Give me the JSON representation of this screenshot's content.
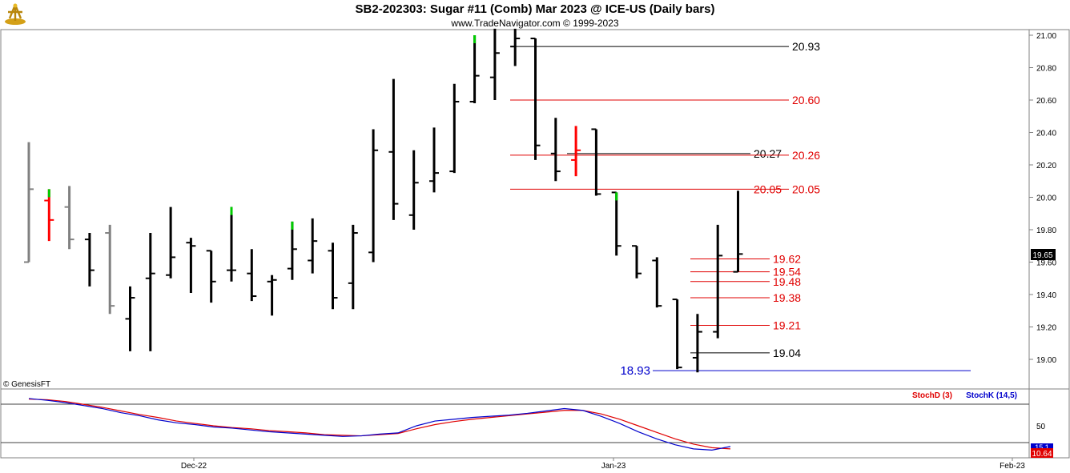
{
  "title": "SB2-202303:  Sugar #11 (Comb) Mar 2023 @ ICE-US  (Daily bars)",
  "subtitle": "www.TradeNavigator.com © 1999-2023",
  "copyright": "© GenesisFT",
  "colors": {
    "up": "#00cc00",
    "down": "#ff0000",
    "bar": "#000000",
    "gray": "#808080",
    "level_red": "#e00000",
    "level_blue": "#0000cc",
    "stoch_d": "#e00000",
    "stoch_k": "#0000cc"
  },
  "chart_data": {
    "type": "ohlc",
    "price_axis": {
      "ticks": [
        "21.00",
        "20.80",
        "20.60",
        "20.40",
        "20.20",
        "20.00",
        "19.80",
        "19.60",
        "19.40",
        "19.20",
        "19.00"
      ],
      "ylim": [
        18.88,
        21.03
      ]
    },
    "last_price": "19.65",
    "x_labels": [
      "Dec-22",
      "Jan-23",
      "Feb-23"
    ],
    "bars": [
      {
        "o": 19.6,
        "h": 20.34,
        "l": 19.6,
        "c": 20.05,
        "style": "gray"
      },
      {
        "o": 19.98,
        "h": 20.05,
        "l": 19.73,
        "c": 19.86,
        "style": "red"
      },
      {
        "o": 19.94,
        "h": 20.07,
        "l": 19.68,
        "c": 19.74,
        "style": "gray"
      },
      {
        "o": 19.74,
        "h": 19.78,
        "l": 19.45,
        "c": 19.55,
        "style": "black"
      },
      {
        "o": 19.78,
        "h": 19.83,
        "l": 19.28,
        "c": 19.33,
        "style": "gray"
      },
      {
        "o": 19.25,
        "h": 19.45,
        "l": 19.05,
        "c": 19.38,
        "style": "black"
      },
      {
        "o": 19.5,
        "h": 19.78,
        "l": 19.05,
        "c": 19.53,
        "style": "black"
      },
      {
        "o": 19.52,
        "h": 19.94,
        "l": 19.5,
        "c": 19.63,
        "style": "black"
      },
      {
        "o": 19.72,
        "h": 19.75,
        "l": 19.41,
        "c": 19.7,
        "style": "black"
      },
      {
        "o": 19.67,
        "h": 19.67,
        "l": 19.35,
        "c": 19.48,
        "style": "black"
      },
      {
        "o": 19.55,
        "h": 19.94,
        "l": 19.48,
        "c": 19.55,
        "style": "black"
      },
      {
        "o": 19.53,
        "h": 19.68,
        "l": 19.36,
        "c": 19.39,
        "style": "black"
      },
      {
        "o": 19.48,
        "h": 19.52,
        "l": 19.27,
        "c": 19.49,
        "style": "black"
      },
      {
        "o": 19.56,
        "h": 19.85,
        "l": 19.49,
        "c": 19.68,
        "style": "black"
      },
      {
        "o": 19.61,
        "h": 19.87,
        "l": 19.53,
        "c": 19.73,
        "style": "black"
      },
      {
        "o": 19.67,
        "h": 19.72,
        "l": 19.31,
        "c": 19.38,
        "style": "black"
      },
      {
        "o": 19.47,
        "h": 19.83,
        "l": 19.31,
        "c": 19.78,
        "style": "black"
      },
      {
        "o": 19.66,
        "h": 20.42,
        "l": 19.6,
        "c": 20.29,
        "style": "black"
      },
      {
        "o": 20.28,
        "h": 20.73,
        "l": 19.86,
        "c": 19.96,
        "style": "black"
      },
      {
        "o": 19.89,
        "h": 20.29,
        "l": 19.8,
        "c": 20.09,
        "style": "black"
      },
      {
        "o": 20.1,
        "h": 20.43,
        "l": 20.03,
        "c": 20.15,
        "style": "black"
      },
      {
        "o": 20.16,
        "h": 20.7,
        "l": 20.15,
        "c": 20.59,
        "style": "black"
      },
      {
        "o": 20.59,
        "h": 21.0,
        "l": 20.58,
        "c": 20.75,
        "style": "black"
      },
      {
        "o": 20.74,
        "h": 21.04,
        "l": 20.6,
        "c": 20.89,
        "style": "black"
      },
      {
        "o": 20.93,
        "h": 21.04,
        "l": 20.81,
        "c": 20.98,
        "style": "black"
      },
      {
        "o": 20.98,
        "h": 20.98,
        "l": 20.23,
        "c": 20.32,
        "style": "black"
      },
      {
        "o": 20.27,
        "h": 20.49,
        "l": 20.1,
        "c": 20.16,
        "style": "black"
      },
      {
        "o": 20.23,
        "h": 20.44,
        "l": 20.13,
        "c": 20.29,
        "style": "red"
      },
      {
        "o": 20.42,
        "h": 20.42,
        "l": 20.01,
        "c": 20.02,
        "style": "black"
      },
      {
        "o": 20.03,
        "h": 20.03,
        "l": 19.64,
        "c": 19.7,
        "style": "black"
      },
      {
        "o": 19.7,
        "h": 19.7,
        "l": 19.5,
        "c": 19.53,
        "style": "black"
      },
      {
        "o": 19.61,
        "h": 19.63,
        "l": 19.32,
        "c": 19.33,
        "style": "black"
      },
      {
        "o": 19.37,
        "h": 19.37,
        "l": 18.94,
        "c": 18.95,
        "style": "black"
      },
      {
        "o": 19.01,
        "h": 19.28,
        "l": 18.92,
        "c": 19.17,
        "style": "black"
      },
      {
        "o": 19.17,
        "h": 19.83,
        "l": 19.13,
        "c": 19.64,
        "style": "black"
      },
      {
        "o": 19.54,
        "h": 20.04,
        "l": 19.54,
        "c": 19.65,
        "style": "black"
      }
    ],
    "levels": [
      {
        "price": 20.93,
        "label": "20.93",
        "color": "black"
      },
      {
        "price": 20.6,
        "label": "20.60",
        "color": "red"
      },
      {
        "price": 20.27,
        "label": "20.27",
        "color": "black"
      },
      {
        "price": 20.26,
        "label": "20.26",
        "color": "red"
      },
      {
        "price": 20.05,
        "label": "20.05",
        "color": "red"
      },
      {
        "price": 20.05,
        "label": "20.05",
        "color": "red"
      },
      {
        "price": 19.62,
        "label": "19.62",
        "color": "red"
      },
      {
        "price": 19.54,
        "label": "19.54",
        "color": "red"
      },
      {
        "price": 19.48,
        "label": "19.48",
        "color": "red"
      },
      {
        "price": 19.38,
        "label": "19.38",
        "color": "red"
      },
      {
        "price": 19.21,
        "label": "19.21",
        "color": "red"
      },
      {
        "price": 19.04,
        "label": "19.04",
        "color": "black"
      },
      {
        "price": 18.93,
        "label": "18.93",
        "color": "blue"
      }
    ],
    "stochastic": {
      "legend_d": "StochD (3)",
      "legend_k": "StochK (14,5)",
      "ticks": [
        "50"
      ],
      "ylim": [
        0,
        100
      ],
      "last_d": "10.64",
      "last_k": "15.1",
      "k": [
        96,
        93,
        89,
        84,
        79,
        72,
        67,
        60,
        55,
        52,
        48,
        46,
        43,
        40,
        38,
        36,
        34,
        32,
        33,
        36,
        38,
        50,
        58,
        61,
        64,
        66,
        68,
        71,
        75,
        79,
        76,
        66,
        54,
        40,
        28,
        18,
        11,
        9,
        15
      ],
      "d": [
        95,
        94,
        91,
        86,
        81,
        75,
        69,
        64,
        58,
        54,
        50,
        47,
        45,
        42,
        40,
        38,
        35,
        34,
        33,
        35,
        37,
        45,
        52,
        57,
        61,
        64,
        67,
        70,
        73,
        76,
        76,
        70,
        61,
        50,
        39,
        28,
        19,
        13,
        11
      ]
    }
  }
}
